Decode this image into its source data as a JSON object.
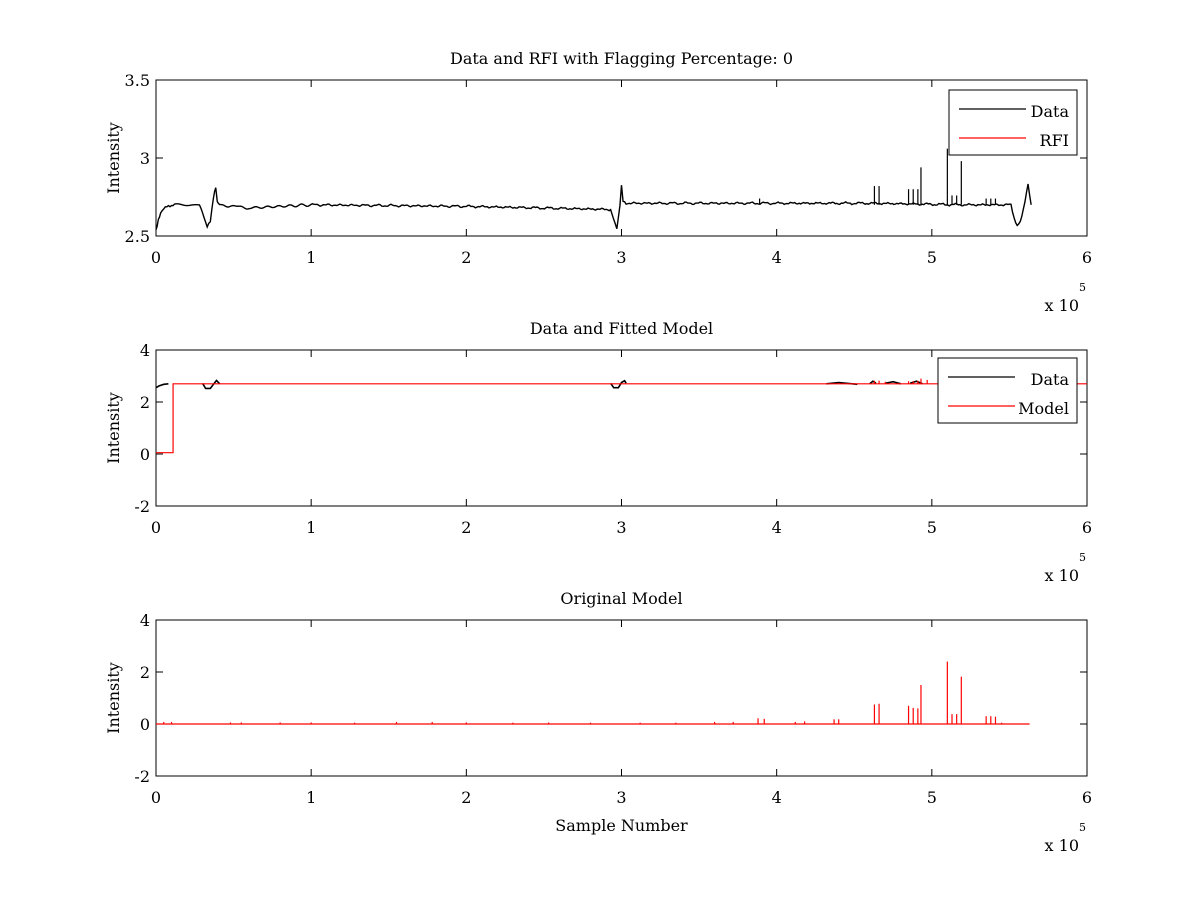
{
  "colors": {
    "data": "#000000",
    "rfi": "#ff0000",
    "model": "#ff0000",
    "axes": "#000000",
    "background": "#ffffff"
  },
  "chart_data": [
    {
      "type": "line",
      "title": "Data and RFI with Flagging Percentage: 0",
      "xlabel": "",
      "ylabel": "Intensity",
      "xlim": [
        0,
        600000
      ],
      "ylim": [
        2.5,
        3.5
      ],
      "xticks": [
        0,
        1,
        2,
        3,
        4,
        5,
        6
      ],
      "xtick_labels": [
        "0",
        "1",
        "2",
        "3",
        "4",
        "5",
        "6"
      ],
      "yticks": [
        2.5,
        3,
        3.5
      ],
      "ytick_labels": [
        "2.5",
        "3",
        "3.5"
      ],
      "x_multiplier": {
        "base": "x 10",
        "exp": "5"
      },
      "grid": false,
      "legend_position": "top-right",
      "series": [
        {
          "name": "Data",
          "color": "#000000",
          "baseline": 2.7,
          "points": [
            [
              0,
              2.54
            ],
            [
              1500,
              2.6
            ],
            [
              3000,
              2.65
            ],
            [
              5000,
              2.68
            ],
            [
              8000,
              2.69
            ],
            [
              12000,
              2.7
            ],
            [
              28000,
              2.7
            ],
            [
              31000,
              2.62
            ],
            [
              33000,
              2.56
            ],
            [
              35000,
              2.59
            ],
            [
              37000,
              2.75
            ],
            [
              38500,
              2.81
            ],
            [
              39500,
              2.72
            ],
            [
              41000,
              2.7
            ],
            [
              60000,
              2.68
            ],
            [
              100000,
              2.7
            ],
            [
              200000,
              2.69
            ],
            [
              293000,
              2.67
            ],
            [
              295000,
              2.6
            ],
            [
              297000,
              2.55
            ],
            [
              299000,
              2.7
            ],
            [
              300000,
              2.82
            ],
            [
              301000,
              2.72
            ],
            [
              303000,
              2.71
            ],
            [
              400000,
              2.71
            ],
            [
              460000,
              2.71
            ],
            [
              520000,
              2.7
            ],
            [
              551000,
              2.7
            ],
            [
              553000,
              2.62
            ],
            [
              555000,
              2.56
            ],
            [
              557000,
              2.59
            ],
            [
              560000,
              2.72
            ],
            [
              562000,
              2.83
            ],
            [
              564000,
              2.7
            ]
          ],
          "spikes": [
            [
              389000,
              2.74
            ],
            [
              463000,
              2.82
            ],
            [
              466000,
              2.82
            ],
            [
              485000,
              2.8
            ],
            [
              488000,
              2.8
            ],
            [
              491000,
              2.8
            ],
            [
              493000,
              2.94
            ],
            [
              510000,
              3.06
            ],
            [
              513000,
              2.76
            ],
            [
              516000,
              2.76
            ],
            [
              519000,
              2.98
            ],
            [
              535000,
              2.74
            ],
            [
              538000,
              2.74
            ],
            [
              541000,
              2.74
            ]
          ]
        },
        {
          "name": "RFI",
          "color": "#ff0000",
          "points": []
        }
      ]
    },
    {
      "type": "line",
      "title": "Data and Fitted Model",
      "xlabel": "",
      "ylabel": "Intensity",
      "xlim": [
        0,
        600000
      ],
      "ylim": [
        -2,
        4
      ],
      "xticks": [
        0,
        1,
        2,
        3,
        4,
        5,
        6
      ],
      "xtick_labels": [
        "0",
        "1",
        "2",
        "3",
        "4",
        "5",
        "6"
      ],
      "yticks": [
        -2,
        0,
        2,
        4
      ],
      "ytick_labels": [
        "-2",
        "0",
        "2",
        "4"
      ],
      "x_multiplier": {
        "base": "x 10",
        "exp": "5"
      },
      "grid": false,
      "legend_position": "top-right",
      "series": [
        {
          "name": "Data",
          "color": "#000000",
          "segments": [
            [
              [
                0,
                2.55
              ],
              [
                2000,
                2.62
              ],
              [
                5000,
                2.68
              ],
              [
                8000,
                2.7
              ]
            ],
            [
              [
                30000,
                2.72
              ],
              [
                32000,
                2.52
              ],
              [
                35000,
                2.52
              ],
              [
                37000,
                2.68
              ],
              [
                39000,
                2.83
              ],
              [
                41000,
                2.7
              ]
            ],
            [
              [
                293000,
                2.72
              ],
              [
                295000,
                2.55
              ],
              [
                298000,
                2.55
              ],
              [
                300000,
                2.75
              ],
              [
                302000,
                2.82
              ],
              [
                303000,
                2.72
              ]
            ],
            [
              [
                432000,
                2.7
              ],
              [
                440000,
                2.75
              ],
              [
                452000,
                2.68
              ]
            ],
            [
              [
                460000,
                2.7
              ],
              [
                462000,
                2.8
              ],
              [
                464000,
                2.72
              ]
            ],
            [
              [
                470000,
                2.72
              ],
              [
                475000,
                2.78
              ],
              [
                480000,
                2.7
              ]
            ],
            [
              [
                486000,
                2.72
              ],
              [
                490000,
                2.8
              ],
              [
                494000,
                2.7
              ]
            ]
          ]
        },
        {
          "name": "Model",
          "color": "#ff0000",
          "points": [
            [
              0,
              0.05
            ],
            [
              11000,
              0.05
            ],
            [
              11000,
              2.7
            ],
            [
              600000,
              2.7
            ]
          ],
          "spikes": [
            [
              463000,
              2.82
            ],
            [
              466000,
              2.82
            ],
            [
              470000,
              2.78
            ],
            [
              485000,
              2.8
            ],
            [
              488000,
              2.8
            ],
            [
              491000,
              2.82
            ],
            [
              493000,
              2.9
            ],
            [
              497000,
              2.85
            ]
          ]
        }
      ]
    },
    {
      "type": "line",
      "title": "Original Model",
      "xlabel": "Sample Number",
      "ylabel": "Intensity",
      "xlim": [
        0,
        600000
      ],
      "ylim": [
        -2,
        4
      ],
      "xticks": [
        0,
        1,
        2,
        3,
        4,
        5,
        6
      ],
      "xtick_labels": [
        "0",
        "1",
        "2",
        "3",
        "4",
        "5",
        "6"
      ],
      "yticks": [
        -2,
        0,
        2,
        4
      ],
      "ytick_labels": [
        "-2",
        "0",
        "2",
        "4"
      ],
      "x_multiplier": {
        "base": "x 10",
        "exp": "5"
      },
      "grid": false,
      "legend_position": "none",
      "series": [
        {
          "name": "",
          "color": "#ff0000",
          "points": [
            [
              0,
              0.0
            ],
            [
              563000,
              0.0
            ]
          ],
          "spikes": [
            [
              5000,
              0.08
            ],
            [
              10000,
              0.08
            ],
            [
              48000,
              0.06
            ],
            [
              55000,
              0.06
            ],
            [
              80000,
              0.06
            ],
            [
              100000,
              0.06
            ],
            [
              128000,
              0.05
            ],
            [
              155000,
              0.08
            ],
            [
              178000,
              0.08
            ],
            [
              200000,
              0.06
            ],
            [
              230000,
              0.05
            ],
            [
              253000,
              0.06
            ],
            [
              280000,
              0.05
            ],
            [
              312000,
              0.05
            ],
            [
              335000,
              0.05
            ],
            [
              360000,
              0.08
            ],
            [
              372000,
              0.08
            ],
            [
              388000,
              0.22
            ],
            [
              392000,
              0.2
            ],
            [
              412000,
              0.08
            ],
            [
              418000,
              0.1
            ],
            [
              437000,
              0.18
            ],
            [
              440000,
              0.18
            ],
            [
              463000,
              0.75
            ],
            [
              466000,
              0.78
            ],
            [
              485000,
              0.7
            ],
            [
              488000,
              0.62
            ],
            [
              491000,
              0.6
            ],
            [
              493000,
              1.5
            ],
            [
              510000,
              2.4
            ],
            [
              513000,
              0.38
            ],
            [
              516000,
              0.38
            ],
            [
              519000,
              1.82
            ],
            [
              535000,
              0.3
            ],
            [
              538000,
              0.3
            ],
            [
              541000,
              0.28
            ],
            [
              545000,
              0.05
            ]
          ]
        }
      ]
    }
  ]
}
